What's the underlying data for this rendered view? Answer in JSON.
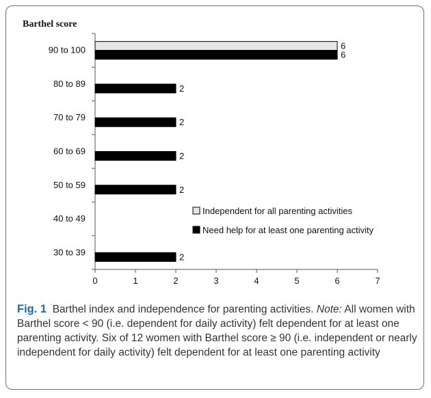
{
  "chart_data": {
    "type": "bar",
    "orientation": "horizontal",
    "ylabel": "Barthel score",
    "categories": [
      "90 to 100",
      "80 to 89",
      "70 to 79",
      "60 to 69",
      "50 to 59",
      "40 to 49",
      "30 to 39"
    ],
    "series": [
      {
        "name": "Independent for all parenting activities",
        "values": [
          6,
          null,
          null,
          null,
          null,
          null,
          null
        ],
        "color": "#e6e6e6"
      },
      {
        "name": "Need help for at least one parenting activity",
        "values": [
          6,
          2,
          2,
          2,
          2,
          null,
          2
        ],
        "color": "#000000"
      }
    ],
    "xlim": [
      0,
      7
    ],
    "xticks": [
      "0",
      "1",
      "2",
      "3",
      "4",
      "5",
      "6",
      "7"
    ],
    "grid": false,
    "legend_position": "lower-right"
  },
  "caption": {
    "label": "Fig. 1",
    "title": "Barthel index and independence for parenting activities.",
    "note_label": "Note:",
    "note_text": "All women with Barthel score < 90 (i.e. dependent for daily activity) felt dependent for at least one parenting activity. Six of 12 women with Barthel score ≥ 90 (i.e. independent or nearly independent for daily activity) felt dependent for at least one parenting activity"
  }
}
